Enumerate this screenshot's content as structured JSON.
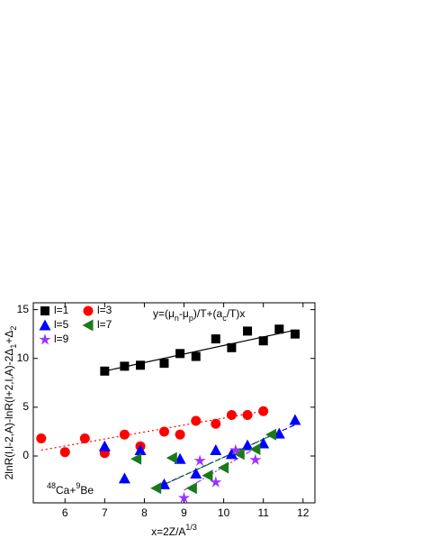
{
  "chart_data": {
    "type": "scatter",
    "x_label": [
      [
        "x=2Z/A",
        ""
      ],
      [
        "1/3",
        "sup"
      ]
    ],
    "y_label": [
      [
        "2lnR(l,l-2,A)-lnR(l+2,l,A)-2Δ",
        ""
      ],
      [
        "1",
        "sub"
      ],
      [
        "+Δ",
        ""
      ],
      [
        "2",
        "sub"
      ]
    ],
    "annotation": [
      [
        "y=(μ",
        ""
      ],
      [
        "n",
        "sub"
      ],
      [
        "-μ",
        ""
      ],
      [
        "p",
        "sub"
      ],
      [
        ")/T+(a",
        ""
      ],
      [
        "c",
        "sub"
      ],
      [
        "/T)x",
        ""
      ]
    ],
    "reaction": [
      [
        "48",
        "sup"
      ],
      [
        "Ca+",
        ""
      ],
      [
        "9",
        "sup"
      ],
      [
        "Be",
        ""
      ]
    ],
    "xlim": [
      5.2,
      12.3
    ],
    "ylim": [
      -4.8,
      15.7
    ],
    "xticks": [
      6,
      7,
      8,
      9,
      10,
      11,
      12
    ],
    "yticks": [
      0,
      5,
      10,
      15
    ],
    "series": [
      {
        "name": "l=1",
        "color": "#000000",
        "marker": "square",
        "x": [
          7.0,
          7.5,
          7.9,
          8.5,
          8.9,
          9.3,
          9.8,
          10.2,
          10.6,
          11.0,
          11.4,
          11.8
        ],
        "values": [
          8.7,
          9.2,
          9.3,
          9.5,
          10.5,
          10.2,
          12.0,
          11.1,
          12.8,
          11.8,
          13.0,
          12.5
        ]
      },
      {
        "name": "l=3",
        "color": "#ff0000",
        "marker": "circle",
        "x": [
          5.4,
          6.0,
          6.5,
          7.0,
          7.5,
          7.9,
          8.5,
          8.9,
          9.3,
          9.8,
          10.2,
          10.6,
          11.0
        ],
        "values": [
          1.8,
          0.4,
          1.8,
          0.3,
          2.2,
          1.0,
          2.5,
          2.2,
          3.6,
          3.3,
          4.2,
          4.2,
          4.6
        ]
      },
      {
        "name": "l=5",
        "color": "#0000ff",
        "marker": "triangle-up",
        "x": [
          7.0,
          7.5,
          7.9,
          8.5,
          8.9,
          9.3,
          9.8,
          10.2,
          10.6,
          11.0,
          11.4,
          11.8
        ],
        "values": [
          1.0,
          -2.3,
          0.6,
          -2.9,
          -0.3,
          -1.8,
          0.6,
          0.2,
          1.1,
          1.3,
          2.3,
          3.7
        ]
      },
      {
        "name": "l=7",
        "color": "#1a7a1a",
        "marker": "triangle-left",
        "x": [
          7.8,
          8.3,
          8.7,
          9.2,
          9.6,
          10.0,
          10.4,
          10.8,
          11.2
        ],
        "values": [
          -0.3,
          -3.3,
          -0.2,
          -3.3,
          -2.0,
          -1.2,
          0.2,
          0.7,
          2.2
        ]
      },
      {
        "name": "l=9",
        "color": "#9b30ff",
        "marker": "star",
        "x": [
          9.0,
          9.4,
          9.8,
          10.3,
          10.8
        ],
        "values": [
          -4.3,
          -0.5,
          -2.7,
          0.6,
          -0.4
        ]
      }
    ],
    "fits": [
      {
        "color": "#000000",
        "dash": "",
        "x": [
          7.0,
          11.8
        ],
        "y": [
          8.7,
          12.9
        ]
      },
      {
        "color": "#ff0000",
        "dash": "2,3",
        "x": [
          5.4,
          11.0
        ],
        "y": [
          0.6,
          4.6
        ]
      },
      {
        "color": "#0000ff",
        "dash": "6,3",
        "x": [
          8.5,
          11.8
        ],
        "y": [
          -2.9,
          3.2
        ]
      },
      {
        "color": "#1a7a1a",
        "dash": "6,2,2,2",
        "x": [
          8.3,
          11.2
        ],
        "y": [
          -3.3,
          2.1
        ]
      },
      {
        "color": "#9b30ff",
        "dash": "6,2,2,2,2,2",
        "x": [
          9.0,
          10.8
        ],
        "y": [
          -3.5,
          0.8
        ]
      }
    ]
  }
}
